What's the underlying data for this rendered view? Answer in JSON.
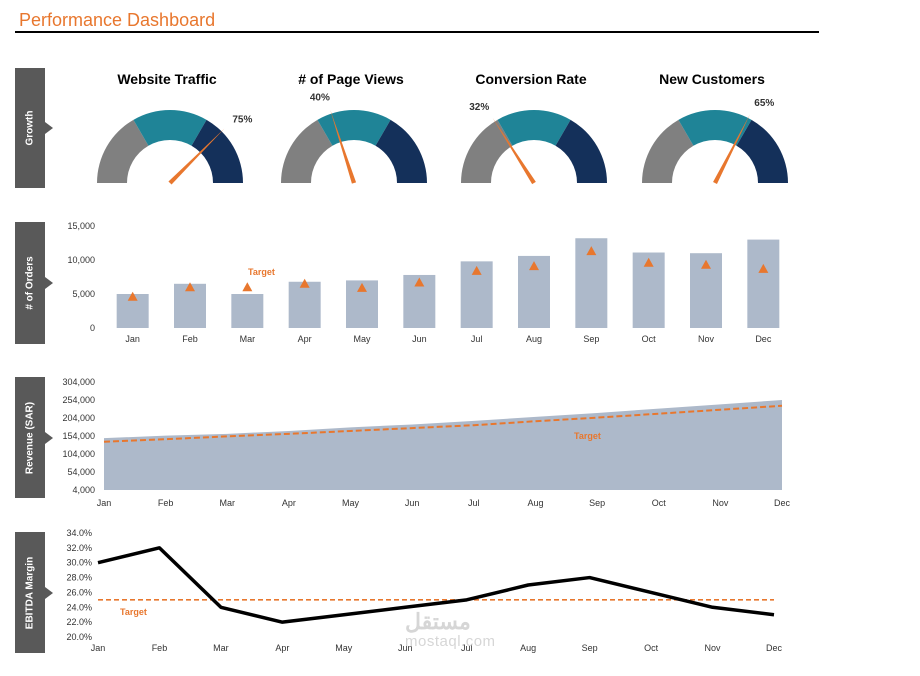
{
  "page": {
    "title": "Performance Dashboard"
  },
  "sections": {
    "growth": "Growth",
    "orders": "# of Orders",
    "revenue": "Revenue (SAR)",
    "ebitda": "EBITDA Margin"
  },
  "colors": {
    "accent": "#e8772e",
    "gauge_grey": "#808080",
    "gauge_teal": "#1f8497",
    "gauge_navy": "#14305a",
    "bar_fill": "#adb9ca",
    "section_tab": "#595959",
    "line": "#000000"
  },
  "watermark": {
    "line1": "مستقل",
    "line2": "mostaql.com"
  },
  "chart_data": [
    {
      "type": "gauge",
      "gauges": [
        {
          "title": "Website Traffic",
          "value_label": "75%",
          "value": 0.75
        },
        {
          "title": "# of Page Views",
          "value_label": "40%",
          "value": 0.4
        },
        {
          "title": "Conversion Rate",
          "value_label": "32%",
          "value": 0.32
        },
        {
          "title": "New Customers",
          "value_label": "65%",
          "value": 0.65
        }
      ],
      "bands": [
        0.333,
        0.667,
        1.0
      ]
    },
    {
      "type": "bar",
      "categories": [
        "Jan",
        "Feb",
        "Mar",
        "Apr",
        "May",
        "Jun",
        "Jul",
        "Aug",
        "Sep",
        "Oct",
        "Nov",
        "Dec"
      ],
      "series": [
        {
          "values": [
            5000,
            6500,
            5000,
            6800,
            7000,
            7800,
            9800,
            10600,
            13200,
            11100,
            11000,
            13000
          ]
        },
        {
          "name": "Target",
          "values": [
            4600,
            6000,
            6000,
            6500,
            5900,
            6700,
            8400,
            9100,
            11300,
            9600,
            9300,
            8700
          ]
        }
      ],
      "yticks": [
        "15,000",
        "10,000",
        "5,000",
        "0"
      ],
      "ylim": [
        0,
        15000
      ],
      "annotation": "Target"
    },
    {
      "type": "area",
      "categories": [
        "Jan",
        "Feb",
        "Mar",
        "Apr",
        "May",
        "Jun",
        "Jul",
        "Aug",
        "Sep",
        "Oct",
        "Nov",
        "Dec"
      ],
      "series": [
        {
          "values": [
            148000,
            155000,
            160000,
            168000,
            178000,
            186000,
            196000,
            207000,
            218000,
            230000,
            242000,
            254000
          ]
        },
        {
          "name": "Target",
          "values": [
            138000,
            145000,
            153000,
            160000,
            168000,
            176000,
            184000,
            195000,
            205000,
            216000,
            227000,
            238000
          ]
        }
      ],
      "yticks": [
        "304,000",
        "254,000",
        "204,000",
        "154,000",
        "104,000",
        "54,000",
        "4,000"
      ],
      "ylim": [
        4000,
        304000
      ],
      "annotation": "Target"
    },
    {
      "type": "line",
      "categories": [
        "Jan",
        "Feb",
        "Mar",
        "Apr",
        "May",
        "Jun",
        "Jul",
        "Aug",
        "Sep",
        "Oct",
        "Nov",
        "Dec"
      ],
      "series": [
        {
          "values": [
            30.0,
            32.0,
            24.0,
            22.0,
            23.0,
            24.0,
            25.0,
            27.0,
            28.0,
            26.0,
            24.0,
            23.0
          ]
        },
        {
          "name": "Target",
          "values": [
            25.0,
            25.0,
            25.0,
            25.0,
            25.0,
            25.0,
            25.0,
            25.0,
            25.0,
            25.0,
            25.0,
            25.0
          ]
        }
      ],
      "yticks": [
        "34.0%",
        "32.0%",
        "30.0%",
        "28.0%",
        "26.0%",
        "24.0%",
        "22.0%",
        "20.0%"
      ],
      "ylim": [
        20,
        34
      ],
      "annotation": "Target"
    }
  ]
}
